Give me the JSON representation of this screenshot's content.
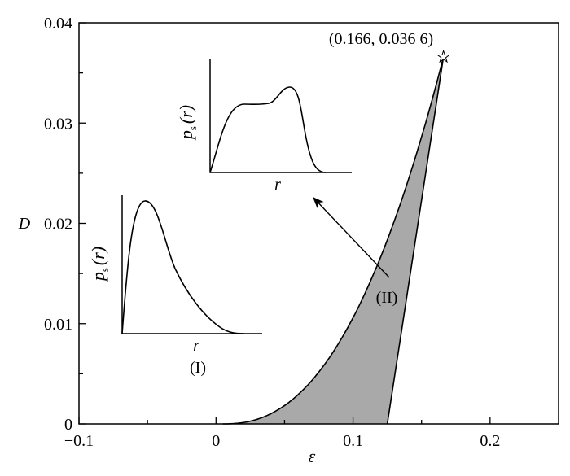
{
  "chart_data": {
    "type": "area",
    "xlabel": "ε",
    "ylabel": "D",
    "xlim": [
      -0.1,
      0.25
    ],
    "ylim": [
      0,
      0.04
    ],
    "x_ticks": [
      "-0.1",
      "0",
      "0.1",
      "0.2"
    ],
    "x_tick_values": [
      -0.1,
      0,
      0.1,
      0.2
    ],
    "y_ticks": [
      "0",
      "0.01",
      "0.02",
      "0.03",
      "0.04"
    ],
    "y_tick_values": [
      0,
      0.01,
      0.02,
      0.03,
      0.04
    ],
    "grid": false,
    "fill_color": "#a9a9a9",
    "region": {
      "left_boundary": {
        "epsilon": [
          0.005,
          0.02,
          0.04,
          0.06,
          0.074,
          0.09,
          0.105,
          0.118,
          0.13,
          0.145,
          0.155,
          0.166
        ],
        "D": [
          0,
          0.00025,
          0.0015,
          0.0035,
          0.005,
          0.0084,
          0.0118,
          0.0159,
          0.0199,
          0.0259,
          0.0304,
          0.0366
        ]
      },
      "right_boundary": {
        "epsilon": [
          0.125,
          0.166
        ],
        "D": [
          0,
          0.0366
        ]
      }
    },
    "critical_point": {
      "epsilon": 0.166,
      "D": 0.0366,
      "label": "(0.166, 0.036 6)",
      "marker": "star"
    },
    "region_labels": {
      "I": "(I)",
      "II": "(II)"
    },
    "insets": {
      "ylabel_main": "p",
      "ylabel_sub": "s",
      "ylabel_arg": "(r)",
      "xlabel": "r"
    }
  }
}
